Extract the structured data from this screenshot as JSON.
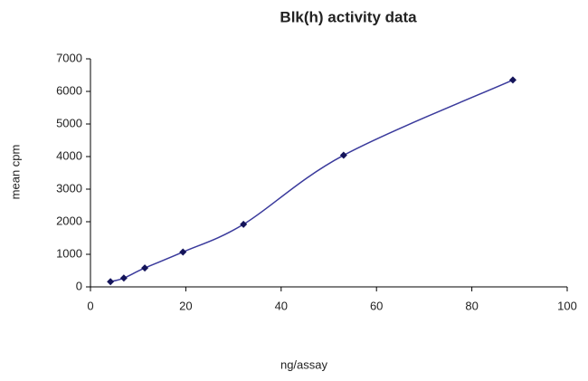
{
  "chart_data": {
    "type": "line",
    "title": "Blk(h) activity data",
    "xlabel": "ng/assay",
    "ylabel": "mean cpm",
    "x": [
      4.2,
      7.0,
      11.4,
      19.4,
      32.1,
      53.1,
      88.6
    ],
    "series": [
      {
        "name": "mean cpm",
        "color": "#3a3a9c",
        "marker_color": "#14145a",
        "values": [
          160,
          270,
          580,
          1070,
          1920,
          4040,
          6350
        ]
      }
    ],
    "xlim": [
      0,
      100
    ],
    "xticks": [
      0,
      20,
      40,
      60,
      80,
      100
    ],
    "ylim": [
      0,
      7000
    ],
    "yticks": [
      0,
      1000,
      2000,
      3000,
      4000,
      5000,
      6000,
      7000
    ],
    "smooth": true,
    "grid": false
  }
}
